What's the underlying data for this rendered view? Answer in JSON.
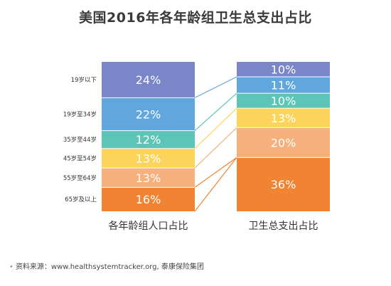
{
  "title": "美国2016年各年龄组卫生总支出占比",
  "source": "资料来源：www.healthsystemtracker.org, 泰康保险集团",
  "chart_data": {
    "type": "stacked-bar",
    "categories": [
      "19岁以下",
      "19岁至34岁",
      "35岁至44岁",
      "45岁至54岁",
      "55岁至64岁",
      "65岁及以上"
    ],
    "colors": [
      "#7b86c8",
      "#60a7df",
      "#5cc5b7",
      "#fcd45c",
      "#f6b07c",
      "#f08433"
    ],
    "series": [
      {
        "name": "各年龄组人口占比",
        "values": [
          24,
          22,
          12,
          13,
          13,
          16
        ],
        "labels": [
          "24%",
          "22%",
          "12%",
          "13%",
          "13%",
          "16%"
        ]
      },
      {
        "name": "卫生总支出占比",
        "values": [
          10,
          11,
          10,
          13,
          20,
          36
        ],
        "labels": [
          "10%",
          "11%",
          "10%",
          "13%",
          "20%",
          "36%"
        ]
      }
    ]
  }
}
